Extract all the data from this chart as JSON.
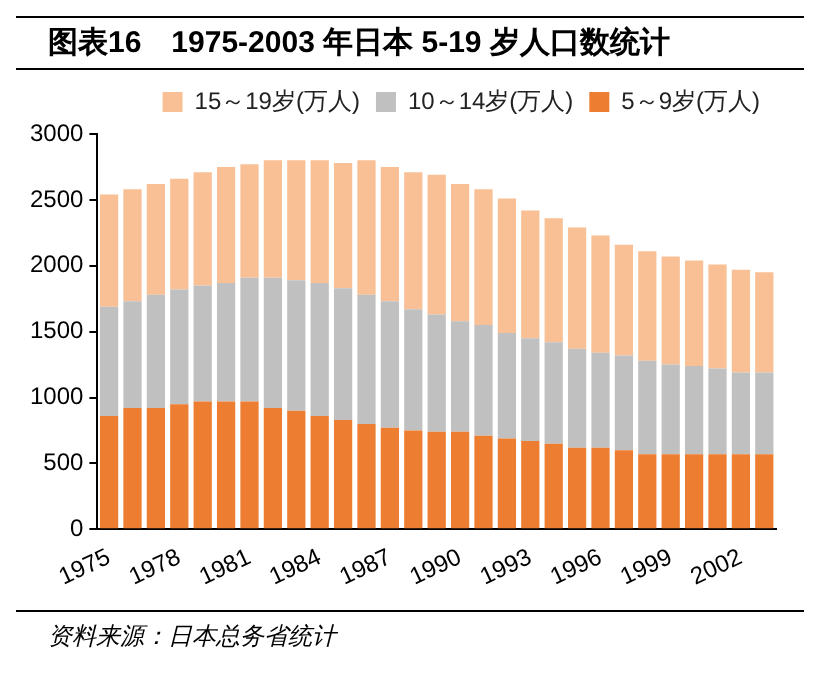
{
  "chart_data": {
    "type": "bar",
    "title": "图表16　1975-2003 年日本 5-19 岁人口数统计",
    "categories": [
      "1975",
      null,
      null,
      "1978",
      null,
      null,
      "1981",
      null,
      null,
      "1984",
      null,
      null,
      "1987",
      null,
      null,
      "1990",
      null,
      null,
      "1993",
      null,
      null,
      "1996",
      null,
      null,
      "1999",
      null,
      null,
      "2002",
      null
    ],
    "series": [
      {
        "name": "5～9岁(万人)",
        "color": "#ed7d31",
        "values": [
          860,
          920,
          920,
          950,
          970,
          970,
          970,
          920,
          900,
          860,
          830,
          800,
          770,
          750,
          740,
          740,
          710,
          690,
          670,
          650,
          620,
          620,
          600,
          570,
          570,
          570,
          570,
          570,
          570
        ]
      },
      {
        "name": "10～14岁(万人)",
        "color": "#c0c0c0",
        "values": [
          830,
          810,
          860,
          870,
          880,
          900,
          940,
          990,
          990,
          1010,
          1000,
          980,
          960,
          920,
          890,
          840,
          840,
          800,
          780,
          770,
          750,
          720,
          720,
          710,
          680,
          670,
          650,
          620,
          620
        ]
      },
      {
        "name": "15～19岁(万人)",
        "color": "#f8c094",
        "values": [
          850,
          850,
          840,
          840,
          860,
          880,
          860,
          890,
          910,
          930,
          950,
          1020,
          1020,
          1040,
          1060,
          1040,
          1030,
          1020,
          970,
          940,
          920,
          890,
          840,
          830,
          820,
          800,
          790,
          780,
          760
        ]
      }
    ],
    "stacked": true,
    "ylim": [
      0,
      3000
    ],
    "yticks": [
      0,
      500,
      1000,
      1500,
      2000,
      2500,
      3000
    ],
    "grid": false,
    "legend": "top right",
    "annotations": [
      "资料来源：日本总务省统计"
    ]
  }
}
